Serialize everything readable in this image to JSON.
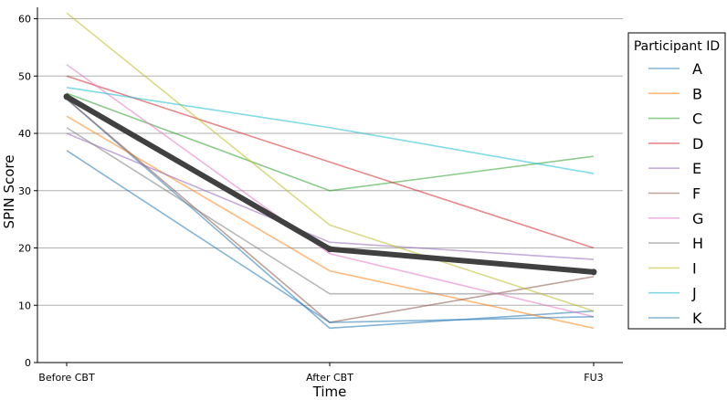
{
  "chart_data": {
    "type": "line",
    "title": "",
    "xlabel": "Time",
    "ylabel": "SPIN Score",
    "categories": [
      "Before CBT",
      "After CBT",
      "FU3"
    ],
    "ylim": [
      0,
      62
    ],
    "yticks": [
      0,
      10,
      20,
      30,
      40,
      50,
      60
    ],
    "grid": "horizontal",
    "legend": {
      "title": "Participant ID",
      "placement": "right"
    },
    "series": [
      {
        "name": "A",
        "values": [
          46,
          6,
          9
        ],
        "color": "#1f77b4"
      },
      {
        "name": "B",
        "values": [
          43,
          16,
          6
        ],
        "color": "#ff7f0e"
      },
      {
        "name": "C",
        "values": [
          47,
          30,
          36
        ],
        "color": "#2ca02c"
      },
      {
        "name": "D",
        "values": [
          50,
          35,
          20
        ],
        "color": "#d62728"
      },
      {
        "name": "E",
        "values": [
          40,
          21,
          18
        ],
        "color": "#9467bd"
      },
      {
        "name": "F",
        "values": [
          46,
          7,
          15
        ],
        "color": "#8c564b"
      },
      {
        "name": "G",
        "values": [
          52,
          19,
          8
        ],
        "color": "#e377c2"
      },
      {
        "name": "H",
        "values": [
          41,
          12,
          12
        ],
        "color": "#7f7f7f"
      },
      {
        "name": "I",
        "values": [
          61,
          24,
          9
        ],
        "color": "#bcbd22"
      },
      {
        "name": "J",
        "values": [
          48,
          41,
          33
        ],
        "color": "#17becf"
      },
      {
        "name": "K",
        "values": [
          37,
          7,
          8
        ],
        "color": "#1f77b4"
      }
    ],
    "mean_series": {
      "values": [
        46.4,
        19.8,
        15.8
      ],
      "color": "#404040"
    }
  }
}
